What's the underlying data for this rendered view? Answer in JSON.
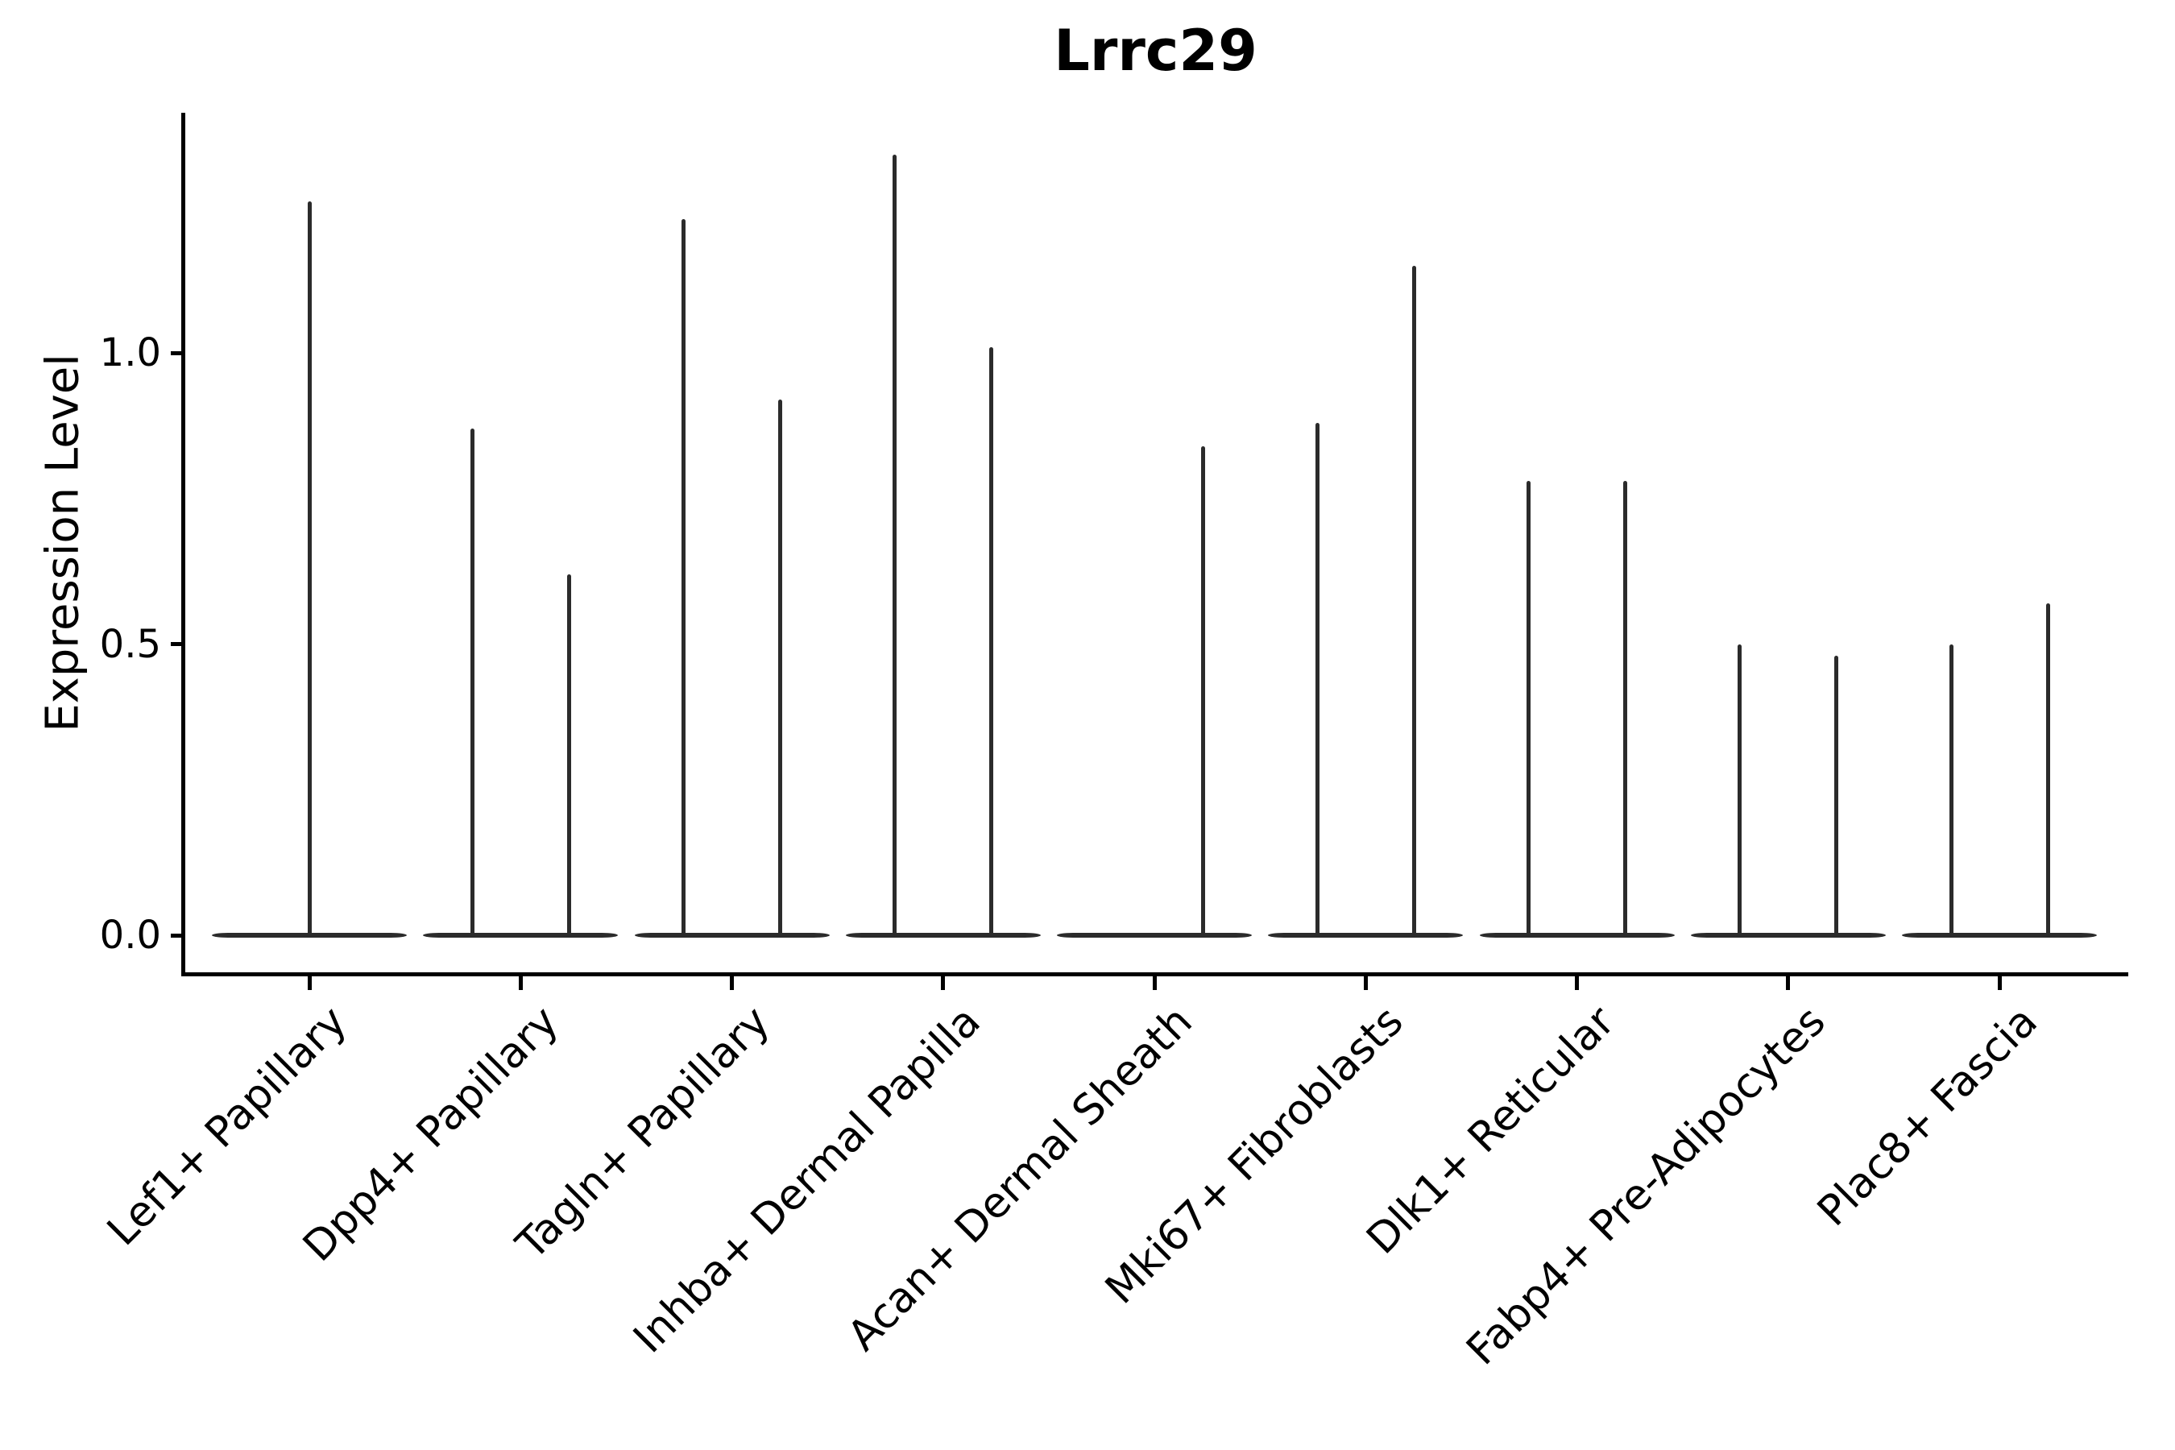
{
  "chart_data": {
    "type": "violin",
    "title": "Lrrc29",
    "ylabel": "Expression Level",
    "xlabel": "",
    "ytick_labels": [
      "0.0",
      "0.5",
      "1.0"
    ],
    "ytick_values": [
      0.0,
      0.5,
      1.0
    ],
    "ylim": [
      -0.07,
      1.41
    ],
    "grid": false,
    "legend": "none",
    "violin_color": "#2b2b2b",
    "axis_color": "#000000",
    "background_color": "#ffffff",
    "baseline_value": 0.0,
    "categories": [
      "Lef1+ Papillary",
      "Dpp4+ Papillary",
      "Tagln+ Papillary",
      "Inhba+ Dermal Papilla",
      "Acan+ Dermal Sheath",
      "Mki67+ Fibroblasts",
      "Dlk1+ Reticular",
      "Fabp4+ Pre-Adipocytes",
      "Plac8+ Fascia"
    ],
    "series": [
      {
        "category": "Lef1+ Papillary",
        "violins": [
          {
            "position": "center",
            "max_expression": 1.26
          }
        ]
      },
      {
        "category": "Dpp4+ Papillary",
        "violins": [
          {
            "position": "left",
            "max_expression": 0.87
          },
          {
            "position": "right",
            "max_expression": 0.62
          }
        ]
      },
      {
        "category": "Tagln+ Papillary",
        "violins": [
          {
            "position": "left",
            "max_expression": 1.23
          },
          {
            "position": "right",
            "max_expression": 0.92
          }
        ]
      },
      {
        "category": "Inhba+ Dermal Papilla",
        "violins": [
          {
            "position": "left",
            "max_expression": 1.34
          },
          {
            "position": "right",
            "max_expression": 1.01
          }
        ]
      },
      {
        "category": "Acan+ Dermal Sheath",
        "violins": [
          {
            "position": "right",
            "max_expression": 0.84
          }
        ]
      },
      {
        "category": "Mki67+ Fibroblasts",
        "violins": [
          {
            "position": "left",
            "max_expression": 0.88
          },
          {
            "position": "right",
            "max_expression": 1.15
          }
        ]
      },
      {
        "category": "Dlk1+ Reticular",
        "violins": [
          {
            "position": "left",
            "max_expression": 0.78
          },
          {
            "position": "right",
            "max_expression": 0.78
          }
        ]
      },
      {
        "category": "Fabp4+ Pre-Adipocytes",
        "violins": [
          {
            "position": "left",
            "max_expression": 0.5
          },
          {
            "position": "right",
            "max_expression": 0.48
          }
        ]
      },
      {
        "category": "Plac8+ Fascia",
        "violins": [
          {
            "position": "left",
            "max_expression": 0.5
          },
          {
            "position": "right",
            "max_expression": 0.57
          }
        ]
      }
    ]
  }
}
